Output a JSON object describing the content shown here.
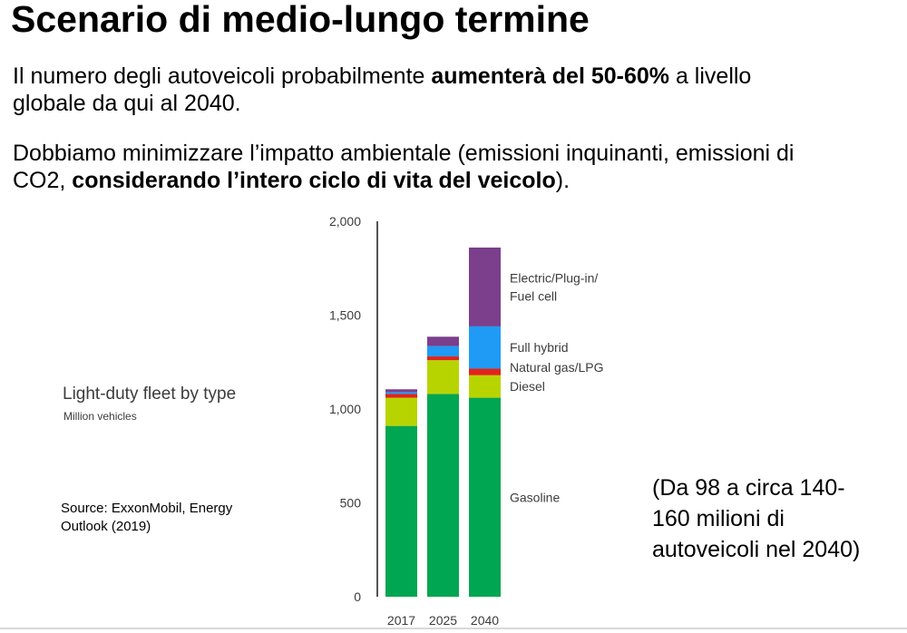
{
  "slide": {
    "title": "Scenario di medio-lungo termine",
    "p1_a": "Il numero degli autoveicoli probabilmente ",
    "p1_b": "aumenterà del 50-60%",
    "p1_c": " a livello",
    "p1_d": "globale da qui al 2040.",
    "p2_a": "Dobbiamo minimizzare l’impatto ambientale (emissioni inquinanti, emissioni di",
    "p2_b": "CO2, ",
    "p2_c": "considerando l’intero ciclo di vita del veicolo",
    "p2_d": ").",
    "source_line1": "Source: ExxonMobil, Energy",
    "source_line2": "Outlook (2019)",
    "note_line1": "(Da 98 a circa 140-",
    "note_line2": "160 milioni di",
    "note_line3": "autoveicoli nel 2040)"
  },
  "chart_data": {
    "type": "bar",
    "stacked": true,
    "title": "Light-duty fleet by type",
    "subtitle": "Million vehicles",
    "categories": [
      "2017",
      "2025",
      "2040"
    ],
    "ylim": [
      0,
      2000
    ],
    "yticks": [
      0,
      500,
      1000,
      1500,
      2000
    ],
    "ytick_labels": [
      "0",
      "500",
      "1,000",
      "1,500",
      "2,000"
    ],
    "series": [
      {
        "name": "Gasoline",
        "color": "#00a651",
        "values": [
          910,
          1080,
          1060
        ]
      },
      {
        "name": "Diesel",
        "color": "#b8d400",
        "values": [
          150,
          180,
          120
        ]
      },
      {
        "name": "Natural gas/LPG",
        "color": "#e2231a",
        "values": [
          20,
          20,
          35
        ]
      },
      {
        "name": "Full hybrid",
        "color": "#1f9bf5",
        "values": [
          10,
          55,
          225
        ]
      },
      {
        "name": "Electric/Plug-in/\nFuel cell",
        "color": "#7b3f8b",
        "values": [
          15,
          50,
          420
        ]
      }
    ],
    "legend_placement": "right-inline"
  }
}
